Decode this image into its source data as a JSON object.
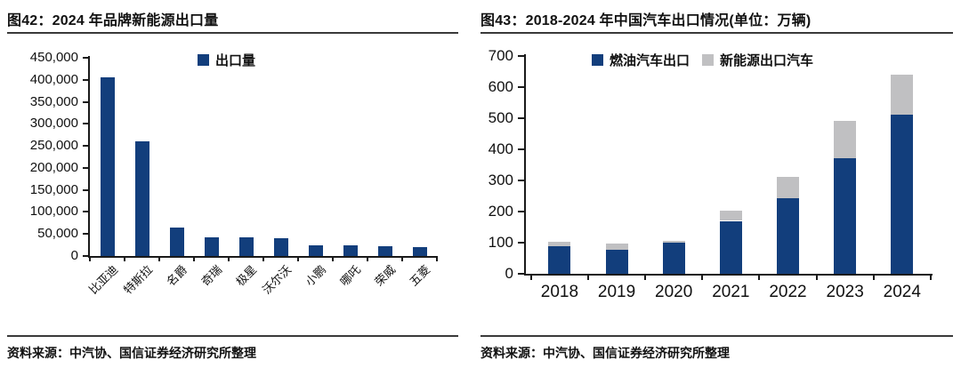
{
  "left_panel": {
    "title": "图42：2024 年品牌新能源出口量",
    "source": "资料来源：中汽协、国信证券经济研究所整理"
  },
  "right_panel": {
    "title": "图43：2018-2024 年中国汽车出口情况(单位：万辆)",
    "source": "资料来源：中汽协、国信证券经济研究所整理"
  },
  "colors": {
    "navy": "#123e7c",
    "gray": "#c0c0c2",
    "axis": "#1a1a1a",
    "rule": "#3a3a3a"
  },
  "chart_data": [
    {
      "type": "bar",
      "title": "图42：2024 年品牌新能源出口量",
      "categories": [
        "比亚迪",
        "特斯拉",
        "名爵",
        "奇瑞",
        "极星",
        "沃尔沃",
        "小鹏",
        "哪吒",
        "荣威",
        "五菱"
      ],
      "series": [
        {
          "name": "出口量",
          "color": "#123e7c",
          "values": [
            405000,
            260000,
            64000,
            43000,
            42000,
            40000,
            24000,
            24000,
            22000,
            21000
          ]
        }
      ],
      "ylim": [
        0,
        450000
      ],
      "ytick_interval": 50000,
      "ytick_labels": [
        "450,000",
        "400,000",
        "350,000",
        "300,000",
        "250,000",
        "200,000",
        "150,000",
        "100,000",
        "50,000",
        "0"
      ],
      "legend_position": "top-center",
      "grid": false
    },
    {
      "type": "stacked-bar",
      "title": "图43：2018-2024 年中国汽车出口情况(单位：万辆)",
      "categories": [
        "2018",
        "2019",
        "2020",
        "2021",
        "2022",
        "2023",
        "2024"
      ],
      "series": [
        {
          "name": "燃油汽车出口",
          "color": "#123e7c",
          "values": [
            88,
            77,
            100,
            170,
            243,
            371,
            512
          ]
        },
        {
          "name": "新能源出口汽车",
          "color": "#c0c0c2",
          "values": [
            14,
            21,
            5,
            32,
            68,
            120,
            128
          ]
        }
      ],
      "ylim": [
        0,
        700
      ],
      "ytick_interval": 100,
      "ytick_labels": [
        "700",
        "600",
        "500",
        "400",
        "300",
        "200",
        "100",
        "0"
      ],
      "legend_position": "top-center",
      "grid": false
    }
  ]
}
